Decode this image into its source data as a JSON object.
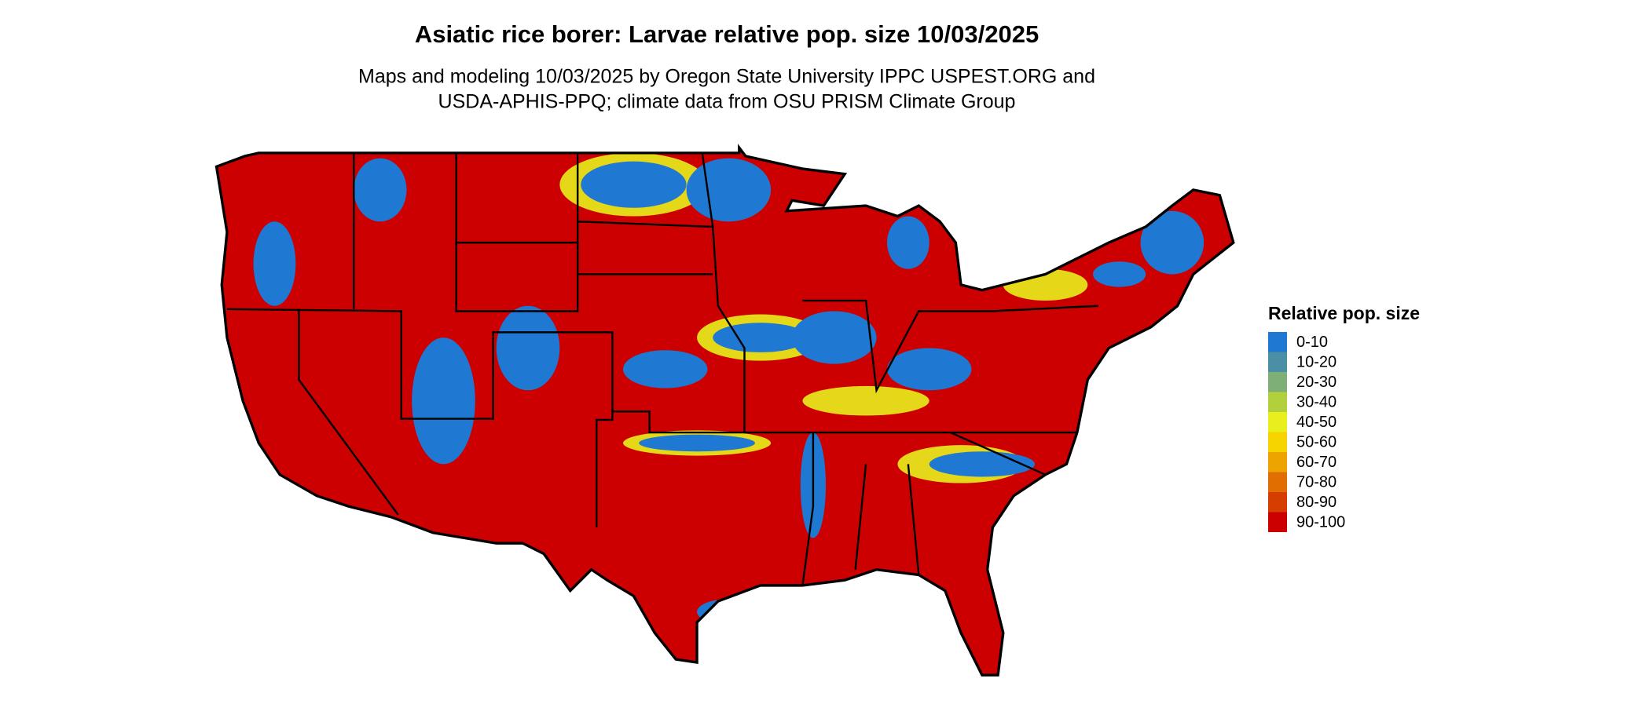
{
  "title": "Asiatic rice borer: Larvae relative pop. size 10/03/2025",
  "subtitle": [
    "Maps and modeling 10/03/2025 by Oregon State University IPPC USPEST.ORG and",
    "USDA-APHIS-PPQ; climate data from OSU PRISM Climate Group"
  ],
  "legend": {
    "title": "Relative pop. size",
    "items": [
      {
        "label": "0-10",
        "color": "#1f78d1"
      },
      {
        "label": "10-20",
        "color": "#4a8fa3"
      },
      {
        "label": "20-30",
        "color": "#7daf76"
      },
      {
        "label": "30-40",
        "color": "#b1d03c"
      },
      {
        "label": "40-50",
        "color": "#e8ef1c"
      },
      {
        "label": "50-60",
        "color": "#f5d400"
      },
      {
        "label": "60-70",
        "color": "#eda300"
      },
      {
        "label": "70-80",
        "color": "#e06e00"
      },
      {
        "label": "80-90",
        "color": "#d63d00"
      },
      {
        "label": "90-100",
        "color": "#cc0000"
      }
    ]
  }
}
